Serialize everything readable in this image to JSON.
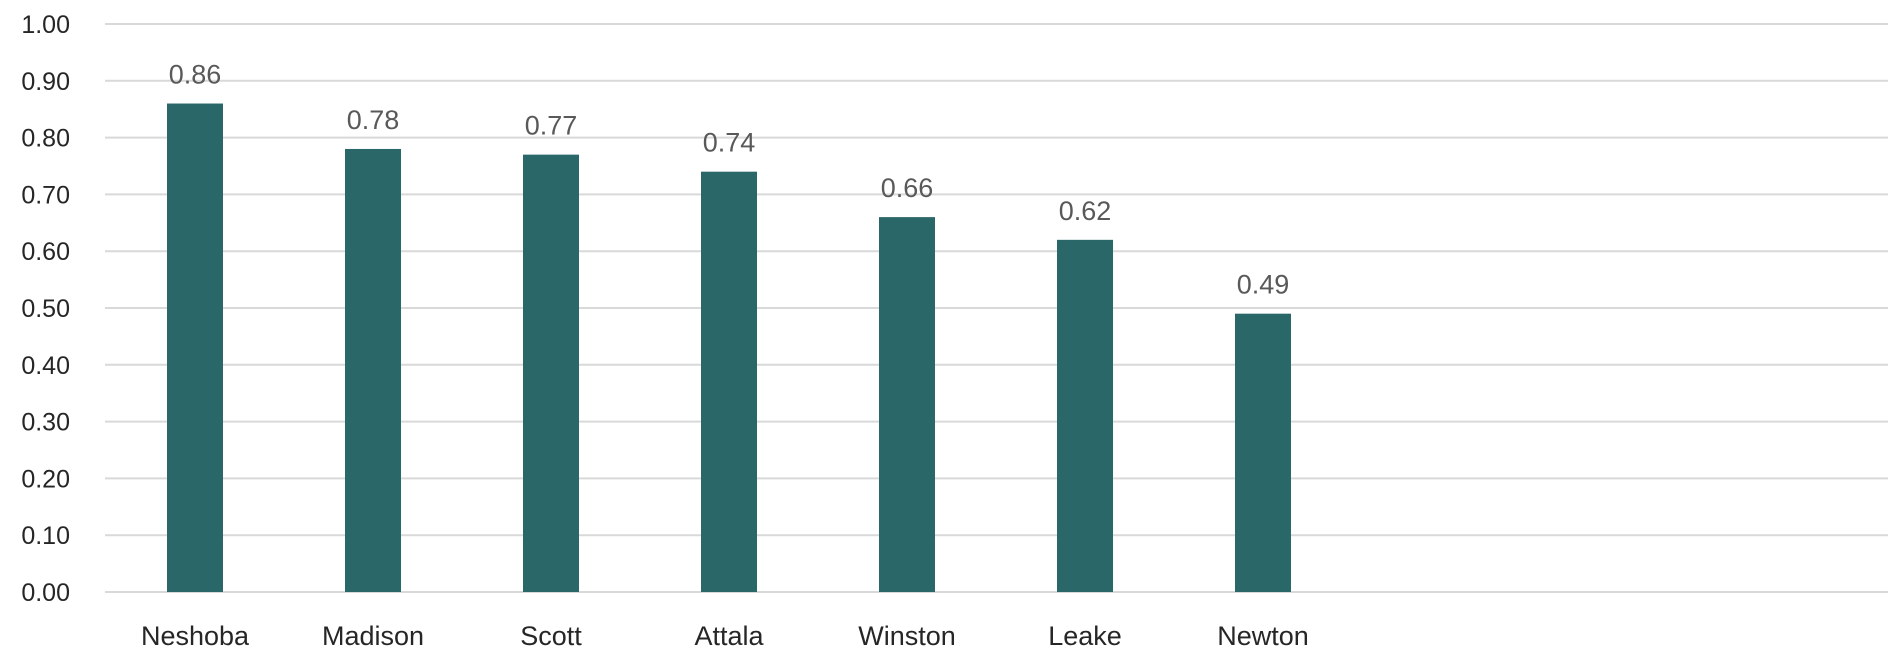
{
  "chart_data": {
    "type": "bar",
    "title": "",
    "xlabel": "",
    "ylabel": "",
    "categories": [
      "Neshoba",
      "Madison",
      "Scott",
      "Attala",
      "Winston",
      "Leake",
      "Newton"
    ],
    "values": [
      0.86,
      0.78,
      0.77,
      0.74,
      0.66,
      0.62,
      0.49
    ],
    "data_labels": [
      "0.86",
      "0.78",
      "0.77",
      "0.74",
      "0.66",
      "0.62",
      "0.49"
    ],
    "ylim": [
      0,
      1.0
    ],
    "y_ticks": [
      0,
      0.1,
      0.2,
      0.3,
      0.4,
      0.5,
      0.6,
      0.7,
      0.8,
      0.9,
      1.0
    ],
    "y_tick_labels": [
      "0.00",
      "0.10",
      "0.20",
      "0.30",
      "0.40",
      "0.50",
      "0.60",
      "0.70",
      "0.80",
      "0.90",
      "1.00"
    ],
    "grid": true,
    "legend": "none",
    "bar_color": "#2a6769",
    "gridline_color": "#d9d9d9"
  }
}
